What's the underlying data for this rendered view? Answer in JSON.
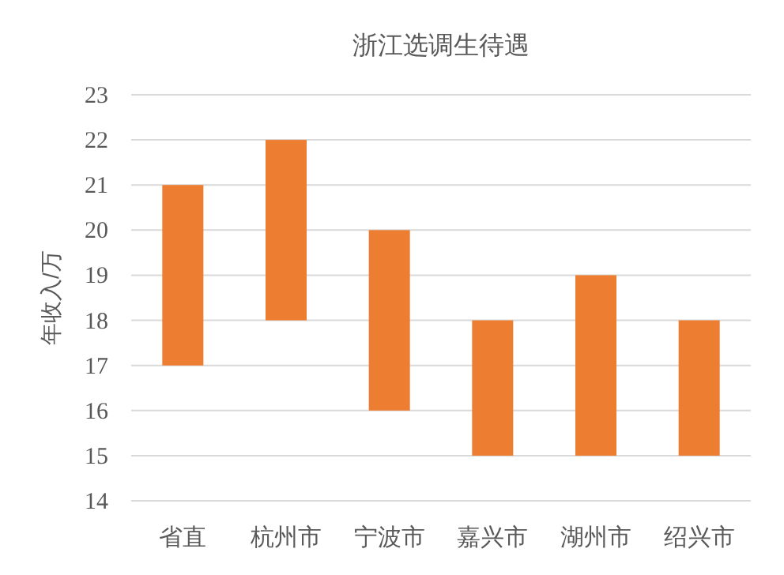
{
  "chart_data": {
    "type": "bar",
    "title": "浙江选调生待遇",
    "ylabel": "年收入/万",
    "categories": [
      "省直",
      "杭州市",
      "宁波市",
      "嘉兴市",
      "湖州市",
      "绍兴市"
    ],
    "base": [
      17,
      18,
      16,
      15,
      15,
      15
    ],
    "values": [
      4,
      4,
      4,
      3,
      4,
      3
    ],
    "color": "#ed7d31",
    "ylim": [
      14,
      23
    ],
    "yticks": [
      14,
      15,
      16,
      17,
      18,
      19,
      20,
      21,
      22,
      23
    ],
    "grid": "y"
  }
}
